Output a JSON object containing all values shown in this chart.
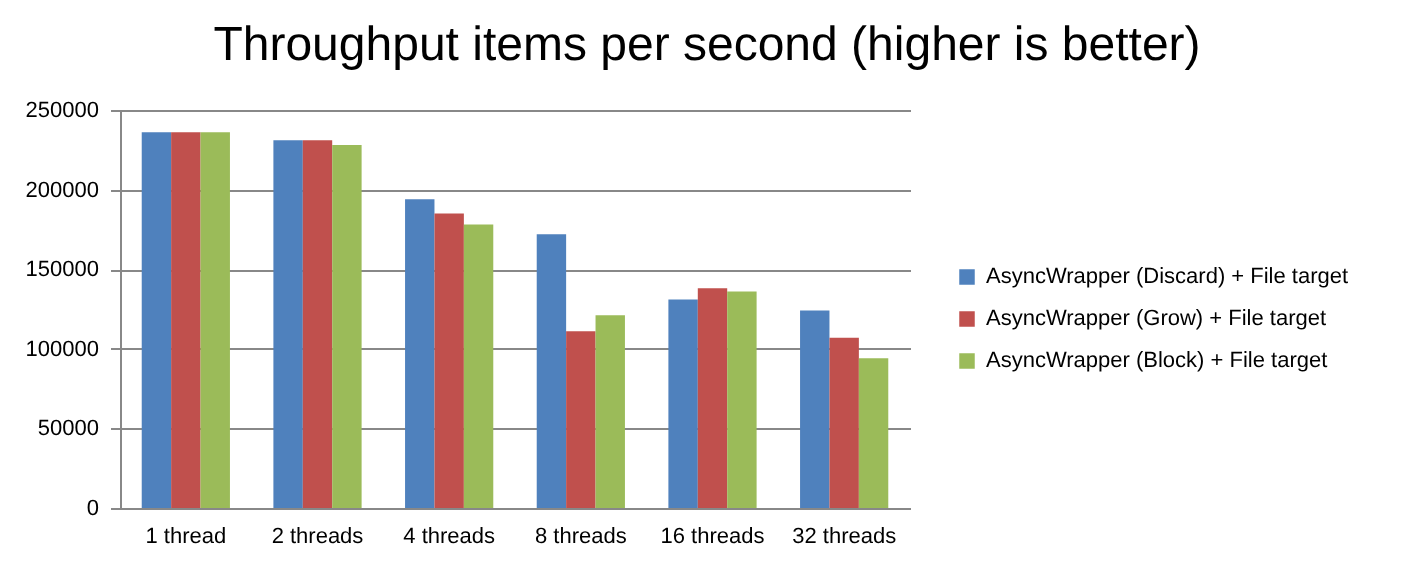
{
  "chart_data": {
    "type": "bar",
    "title": "Throughput items per second (higher is better)",
    "categories": [
      "1 thread",
      "2 threads",
      "4 threads",
      "8 threads",
      "16 threads",
      "32 threads"
    ],
    "series": [
      {
        "name": "AsyncWrapper (Discard) + File target",
        "color": "#4f81bd",
        "values": [
          236000,
          231000,
          194000,
          172000,
          131000,
          124000
        ]
      },
      {
        "name": "AsyncWrapper (Grow) + File target",
        "color": "#c0504d",
        "values": [
          236000,
          231000,
          185000,
          111000,
          138000,
          107000
        ]
      },
      {
        "name": "AsyncWrapper (Block) + File target",
        "color": "#9bbb59",
        "values": [
          236000,
          228000,
          178000,
          121000,
          136000,
          94000
        ]
      }
    ],
    "ylim": [
      0,
      250000
    ],
    "yticks": [
      0,
      50000,
      100000,
      150000,
      200000,
      250000
    ],
    "grid": "y",
    "legend": "right"
  }
}
